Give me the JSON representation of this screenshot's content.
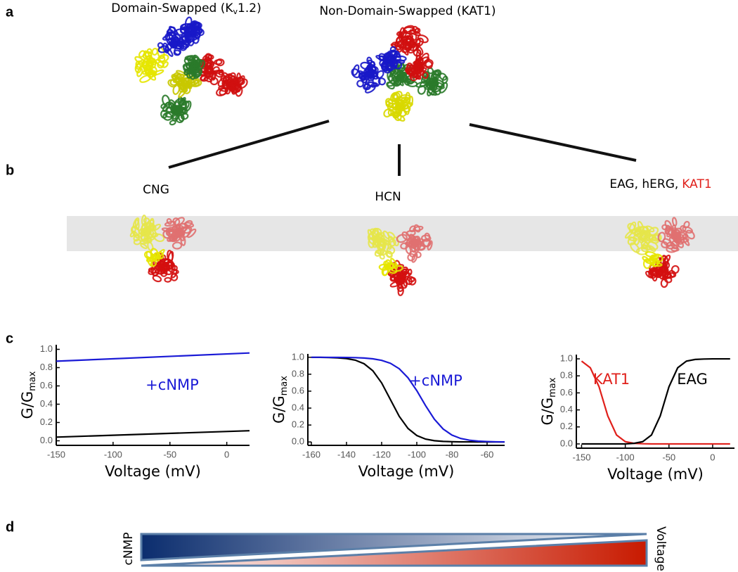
{
  "panel_labels": [
    "a",
    "b",
    "c",
    "d"
  ],
  "panel_a": {
    "left_title": {
      "before": "Domain-Swapped (K",
      "sub": "v",
      "after": "1.2)"
    },
    "right_title": "Non-Domain-Swapped (KAT1)"
  },
  "panel_b": {
    "labels": [
      "CNG",
      "HCN"
    ],
    "eag_label": "EAG, hERG,",
    "kat1_label": "KAT1"
  },
  "panel_d": {
    "left_label": "cNMP",
    "right_label": "Voltage"
  },
  "chart_data": [
    {
      "type": "line",
      "xlabel": "Voltage (mV)",
      "ylabel": "G/G",
      "ylabel_sub": "max",
      "x": [
        -150,
        20
      ],
      "series": [
        {
          "color": "#1a1ad6",
          "values": [
            0.87,
            0.96
          ]
        },
        {
          "color": "#000000",
          "values": [
            0.04,
            0.11
          ]
        }
      ],
      "annotations": [
        {
          "text": "+cNMP",
          "color": "#1a1ad6"
        }
      ],
      "xlim": [
        -150,
        20
      ],
      "xticks": [
        -150,
        -100,
        -50,
        0
      ],
      "ylim": [
        -0.05,
        1.05
      ],
      "yticks": [
        {
          "value": 0,
          "label": "0.0"
        },
        0.2,
        0.4,
        0.6,
        0.8,
        {
          "value": 1,
          "label": "1.0"
        }
      ]
    },
    {
      "type": "line",
      "xlabel": "Voltage (mV)",
      "ylabel": "G/G",
      "ylabel_sub": "max",
      "x": [
        -160,
        -155,
        -150,
        -145,
        -140,
        -135,
        -130,
        -125,
        -120,
        -115,
        -110,
        -105,
        -100,
        -95,
        -90,
        -85,
        -80,
        -75,
        -70,
        -65,
        -60,
        -55,
        -50
      ],
      "series": [
        {
          "color": "#000000",
          "values": [
            0.999,
            0.999,
            0.997,
            0.993,
            0.985,
            0.966,
            0.924,
            0.841,
            0.697,
            0.5,
            0.303,
            0.159,
            0.076,
            0.034,
            0.015,
            0.007,
            0.003,
            0.001,
            0.001,
            0,
            0,
            0,
            0
          ]
        },
        {
          "color": "#1a1ad6",
          "values": [
            1.0,
            1.0,
            0.999,
            0.999,
            0.998,
            0.996,
            0.991,
            0.982,
            0.964,
            0.929,
            0.865,
            0.758,
            0.606,
            0.429,
            0.269,
            0.153,
            0.081,
            0.041,
            0.021,
            0.01,
            0.005,
            0.002,
            0.001
          ]
        }
      ],
      "annotations": [
        {
          "text": "+cNMP",
          "color": "#1a1ad6"
        }
      ],
      "xlim": [
        -162,
        -50
      ],
      "xticks": [
        -160,
        -140,
        -120,
        -100,
        -80,
        -60
      ],
      "ylim": [
        -0.04,
        1.04
      ],
      "yticks": [
        {
          "value": 0,
          "label": "0.0"
        },
        0.2,
        0.4,
        0.6,
        0.8,
        {
          "value": 1,
          "label": "1.0"
        }
      ]
    },
    {
      "type": "line",
      "xlabel": "Voltage (mV)",
      "ylabel": "G/G",
      "ylabel_sub": "max",
      "x": [
        -150,
        -140,
        -130,
        -120,
        -110,
        -100,
        -90,
        -80,
        -70,
        -60,
        -50,
        -40,
        -30,
        -20,
        -10,
        0,
        10,
        20
      ],
      "series": [
        {
          "name": "KAT1",
          "color": "#e0201b",
          "values": [
            0.973,
            0.895,
            0.671,
            0.329,
            0.105,
            0.027,
            0.007,
            0.002,
            0,
            0,
            0,
            0,
            0,
            0,
            0,
            0,
            0,
            0
          ]
        },
        {
          "name": "EAG",
          "color": "#000000",
          "values": [
            0,
            0,
            0,
            0,
            0,
            0,
            0.007,
            0.027,
            0.105,
            0.329,
            0.671,
            0.895,
            0.973,
            0.993,
            0.998,
            1.0,
            1.0,
            1.0
          ]
        }
      ],
      "xlim": [
        -156,
        25
      ],
      "xticks": [
        -150,
        -100,
        -50,
        0
      ],
      "ylim": [
        -0.05,
        1.05
      ],
      "yticks": [
        {
          "value": 0,
          "label": "0.0"
        },
        0.2,
        0.4,
        0.6,
        0.8,
        {
          "value": 1,
          "label": "1.0"
        }
      ]
    }
  ]
}
